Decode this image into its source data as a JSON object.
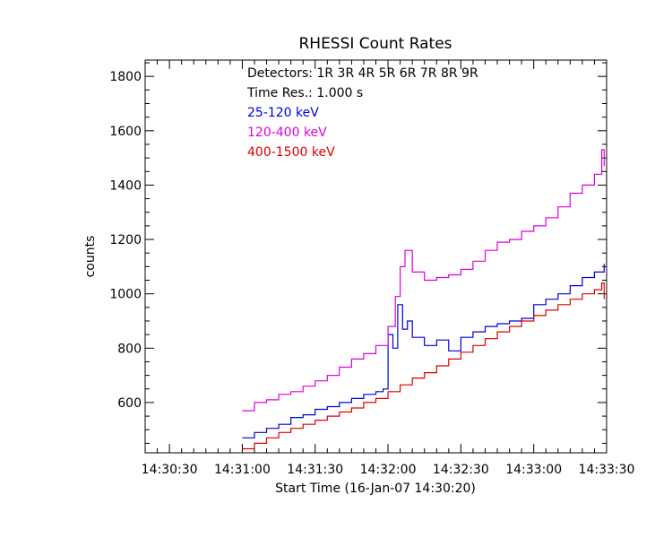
{
  "chart_data": {
    "type": "line",
    "title": "RHESSI Count Rates",
    "xlabel": "Start Time (16-Jan-07 14:30:20)",
    "ylabel": "counts",
    "x_unit": "seconds after 14:30:00",
    "xlim": [
      20,
      210
    ],
    "ylim": [
      415,
      1860
    ],
    "x_ticks": [
      {
        "value": 30,
        "label": "14:30:30"
      },
      {
        "value": 60,
        "label": "14:31:00"
      },
      {
        "value": 90,
        "label": "14:31:30"
      },
      {
        "value": 120,
        "label": "14:32:00"
      },
      {
        "value": 150,
        "label": "14:32:30"
      },
      {
        "value": 180,
        "label": "14:33:00"
      },
      {
        "value": 210,
        "label": "14:33:30"
      }
    ],
    "y_ticks": [
      600,
      800,
      1000,
      1200,
      1400,
      1600,
      1800
    ],
    "annotations": [
      "Detectors:  1R 3R 4R 5R 6R 7R 8R 9R",
      "Time Res.: 1.000 s"
    ],
    "legend_position": "top-left",
    "series": [
      {
        "name": "25-120 keV",
        "color": "#0000dd",
        "x": [
          60,
          65,
          70,
          75,
          80,
          85,
          90,
          95,
          100,
          105,
          110,
          115,
          118,
          120,
          122,
          124,
          126,
          128,
          130,
          135,
          140,
          145,
          150,
          155,
          160,
          165,
          170,
          175,
          180,
          185,
          190,
          195,
          200,
          205,
          209
        ],
        "y": [
          470,
          490,
          505,
          520,
          545,
          555,
          575,
          585,
          600,
          615,
          630,
          640,
          650,
          850,
          800,
          960,
          870,
          900,
          840,
          810,
          830,
          790,
          840,
          860,
          880,
          890,
          900,
          910,
          960,
          980,
          1000,
          1030,
          1060,
          1080,
          1110
        ]
      },
      {
        "name": "120-400 keV",
        "color": "#dd00dd",
        "x": [
          60,
          65,
          70,
          75,
          80,
          85,
          90,
          95,
          100,
          105,
          110,
          115,
          120,
          123,
          125,
          127,
          130,
          135,
          140,
          145,
          150,
          155,
          160,
          165,
          170,
          175,
          180,
          185,
          190,
          195,
          200,
          205,
          208,
          209
        ],
        "y": [
          570,
          600,
          610,
          630,
          640,
          660,
          680,
          700,
          730,
          760,
          780,
          810,
          880,
          990,
          1100,
          1160,
          1080,
          1050,
          1060,
          1070,
          1090,
          1120,
          1160,
          1190,
          1200,
          1230,
          1250,
          1280,
          1320,
          1370,
          1400,
          1440,
          1530,
          1470
        ]
      },
      {
        "name": "400-1500 keV",
        "color": "#dd0000",
        "x": [
          60,
          65,
          70,
          75,
          80,
          85,
          90,
          95,
          100,
          105,
          110,
          115,
          120,
          125,
          130,
          135,
          140,
          145,
          150,
          155,
          160,
          165,
          170,
          175,
          180,
          185,
          190,
          195,
          200,
          205,
          208,
          209
        ],
        "y": [
          430,
          450,
          470,
          490,
          505,
          520,
          535,
          550,
          565,
          580,
          600,
          615,
          640,
          665,
          690,
          710,
          735,
          760,
          785,
          810,
          835,
          860,
          880,
          900,
          920,
          940,
          960,
          980,
          1000,
          1015,
          1040,
          980
        ]
      }
    ]
  }
}
